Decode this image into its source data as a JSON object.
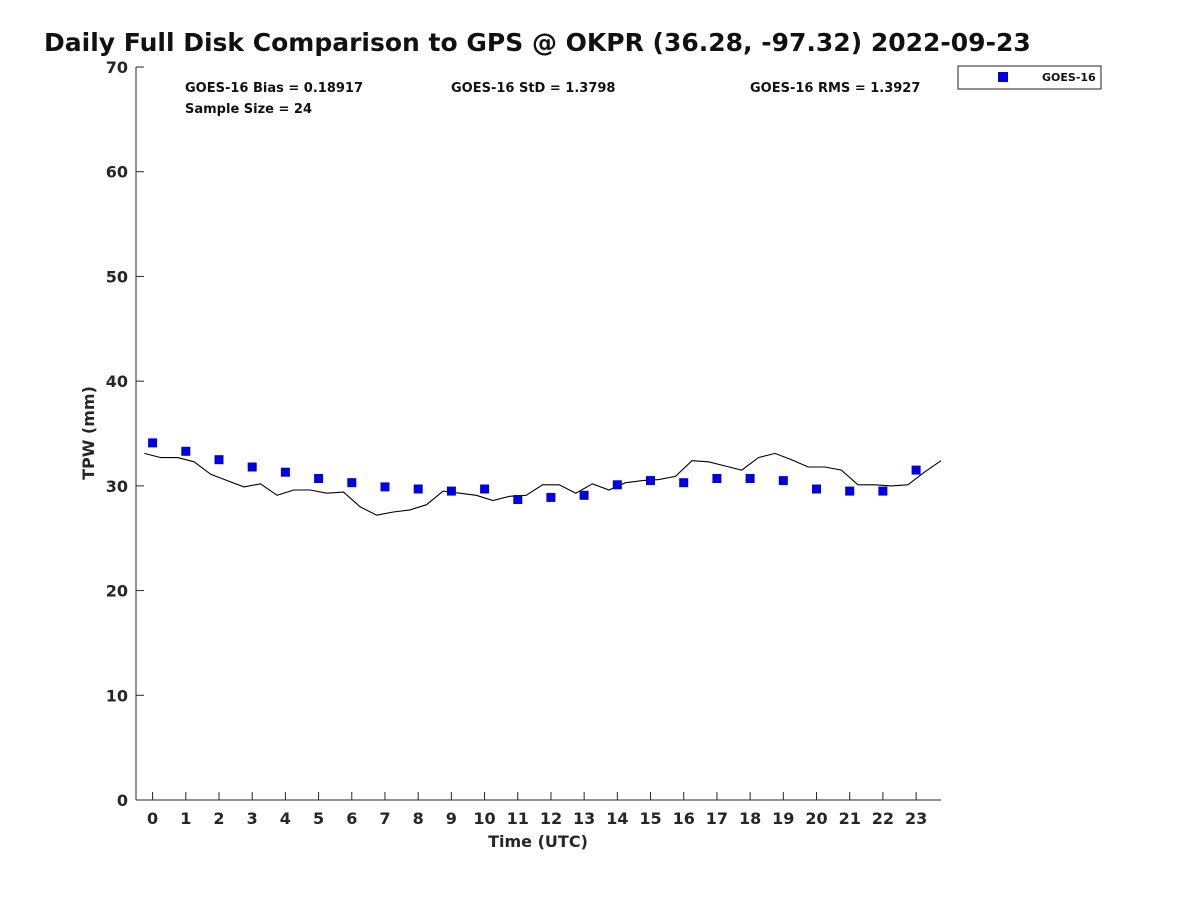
{
  "chart_data": {
    "type": "scatter",
    "title": "Daily Full Disk Comparison to GPS @ OKPR (36.28, -97.32) 2022-09-23",
    "xlabel": "Time (UTC)",
    "ylabel": "TPW (mm)",
    "xlim": [
      -0.5,
      23.75
    ],
    "ylim": [
      0,
      70
    ],
    "x_ticks": [
      0,
      1,
      2,
      3,
      4,
      5,
      6,
      7,
      8,
      9,
      10,
      11,
      12,
      13,
      14,
      15,
      16,
      17,
      18,
      19,
      20,
      21,
      22,
      23
    ],
    "y_ticks": [
      0,
      10,
      20,
      30,
      40,
      50,
      60,
      70
    ],
    "grid": false,
    "legend_position": "top-right-outside",
    "stats": {
      "bias": "GOES-16 Bias = 0.18917",
      "std": "GOES-16 StD = 1.3798",
      "rms": "GOES-16 RMS = 1.3927",
      "sample": "Sample Size = 24"
    },
    "series": [
      {
        "name": "GOES-16",
        "kind": "scatter",
        "color": "#0000dd",
        "marker": "square",
        "x": [
          0,
          1,
          2,
          3,
          4,
          5,
          6,
          7,
          8,
          9,
          10,
          11,
          12,
          13,
          14,
          15,
          16,
          17,
          18,
          19,
          20,
          21,
          22,
          23
        ],
        "y": [
          34.1,
          33.3,
          32.5,
          31.8,
          31.3,
          30.7,
          30.3,
          29.9,
          29.7,
          29.5,
          29.7,
          28.7,
          28.9,
          29.1,
          30.1,
          30.5,
          30.3,
          30.7,
          30.7,
          30.5,
          29.7,
          29.5,
          29.5,
          31.5
        ]
      },
      {
        "kind": "line",
        "color": "#000000",
        "x": [
          -0.25,
          0.25,
          0.75,
          1.25,
          1.75,
          2.25,
          2.75,
          3.25,
          3.75,
          4.25,
          4.75,
          5.25,
          5.75,
          6.25,
          6.75,
          7.25,
          7.75,
          8.25,
          8.75,
          9.25,
          9.75,
          10.25,
          10.75,
          11.25,
          11.75,
          12.25,
          12.75,
          13.25,
          13.75,
          14.25,
          14.75,
          15.25,
          15.75,
          16.25,
          16.75,
          17.25,
          17.75,
          18.25,
          18.75,
          19.25,
          19.75,
          20.25,
          20.75,
          21.25,
          21.75,
          22.25,
          22.75,
          23.25,
          23.75
        ],
        "y": [
          33.1,
          32.7,
          32.7,
          32.3,
          31.1,
          30.5,
          29.9,
          30.2,
          29.1,
          29.6,
          29.6,
          29.3,
          29.4,
          28.0,
          27.2,
          27.5,
          27.7,
          28.2,
          29.5,
          29.3,
          29.1,
          28.6,
          29.0,
          29.1,
          30.1,
          30.1,
          29.3,
          30.2,
          29.6,
          30.3,
          30.5,
          30.6,
          30.9,
          32.4,
          32.3,
          31.9,
          31.5,
          32.7,
          33.1,
          32.5,
          31.8,
          31.8,
          31.5,
          30.1,
          30.1,
          30.0,
          30.1,
          31.3,
          32.4
        ]
      }
    ]
  }
}
